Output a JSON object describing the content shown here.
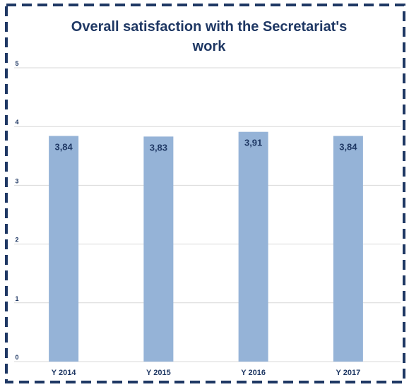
{
  "chart_data": {
    "type": "bar",
    "title_lines": [
      "Overall satisfaction with the Secretariat's",
      "work"
    ],
    "categories": [
      "Y 2014",
      "Y 2015",
      "Y 2016",
      "Y 2017"
    ],
    "values": [
      3.84,
      3.83,
      3.91,
      3.84
    ],
    "value_labels": [
      "3,84",
      "3,83",
      "3,91",
      "3,84"
    ],
    "yticks": [
      "0",
      "1",
      "2",
      "3",
      "4",
      "5"
    ],
    "ylim": [
      0,
      5
    ],
    "xlabel": "",
    "ylabel": "",
    "grid": true,
    "legend": "none"
  },
  "colors": {
    "bar": "#95b3d7",
    "text": "#1f3864",
    "grid": "#d9d9d9",
    "frame": "#1f3864",
    "background": "#ffffff"
  }
}
